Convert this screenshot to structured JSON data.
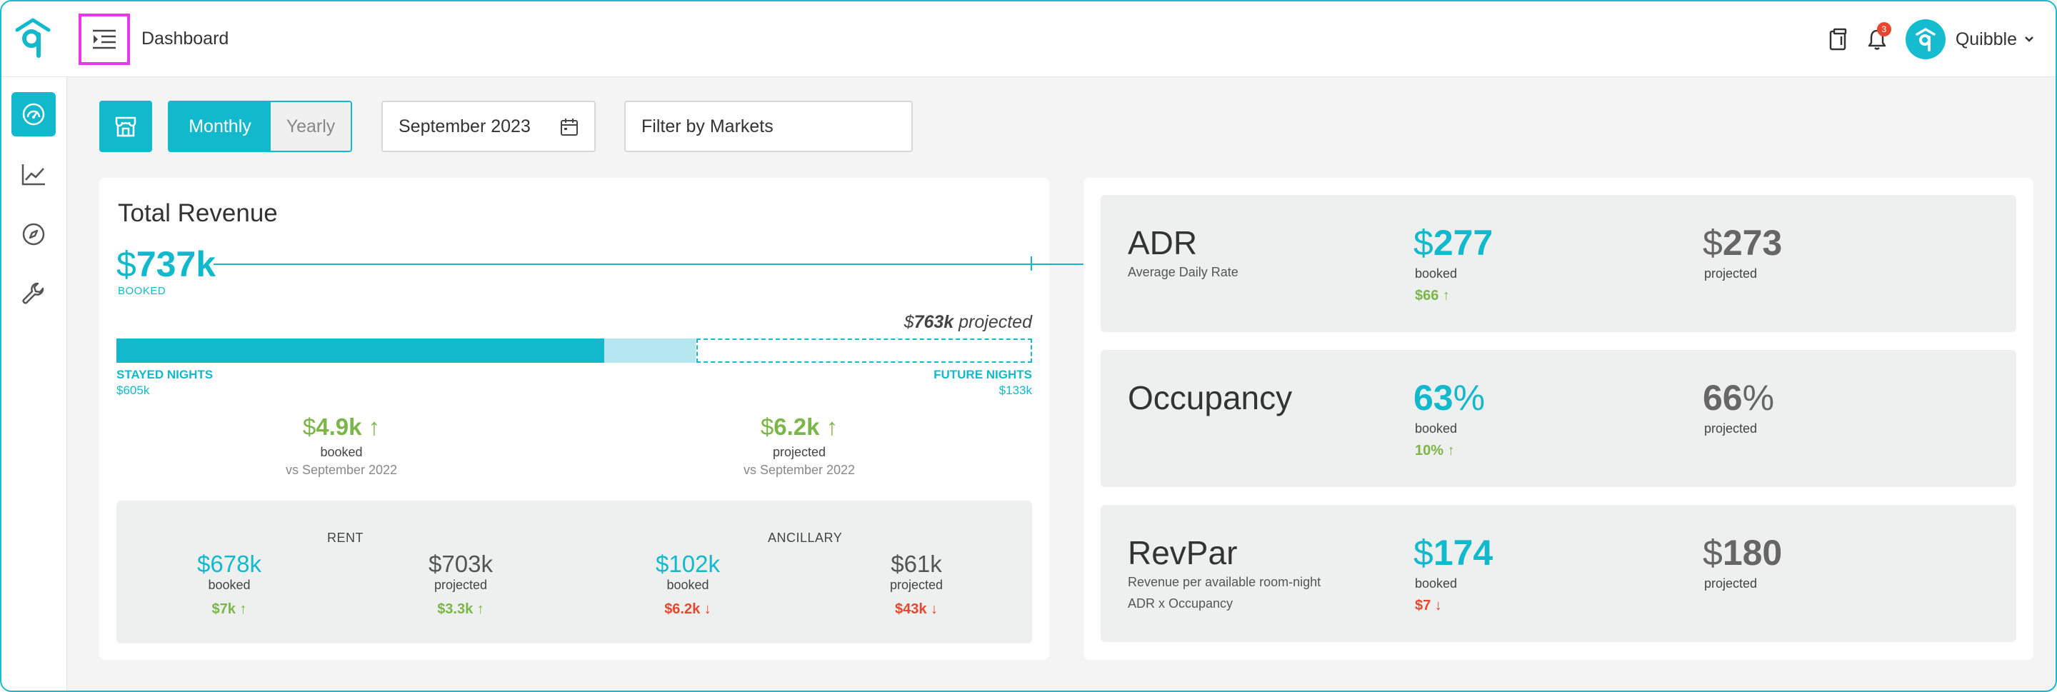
{
  "header": {
    "page_title": "Dashboard",
    "notification_count": "3",
    "user_name": "Quibble"
  },
  "colors": {
    "accent": "#12b9cd",
    "positive": "#7ab648",
    "negative": "#e8472f",
    "highlight": "#e838e8"
  },
  "sidebar": {
    "items": [
      {
        "icon": "dashboard-gauge-icon",
        "active": true
      },
      {
        "icon": "line-chart-icon",
        "active": false
      },
      {
        "icon": "compass-icon",
        "active": false
      },
      {
        "icon": "wrench-icon",
        "active": false
      }
    ]
  },
  "filters": {
    "period_options": [
      "Monthly",
      "Yearly"
    ],
    "period_selected": "Monthly",
    "monthly_label": "Monthly",
    "yearly_label": "Yearly",
    "date_value": "September 2023",
    "market_placeholder": "Filter by Markets"
  },
  "revenue": {
    "title": "Total Revenue",
    "booked_currency": "$",
    "booked_amount": "737k",
    "booked_label": "BOOKED",
    "projected_currency": "$",
    "projected_amount": "763k",
    "projected_suffix": " projected",
    "bar": {
      "stayed_k": 605,
      "booked_k": 737,
      "projected_k": 763
    },
    "stayed_label": "STAYED NIGHTS",
    "stayed_value": "$605k",
    "future_label": "FUTURE NIGHTS",
    "future_value": "$133k",
    "booked_compare": {
      "currency": "$",
      "amount": "4.9k",
      "arrow": "↑",
      "label": "booked",
      "sub": "vs September 2022"
    },
    "projected_compare": {
      "currency": "$",
      "amount": "6.2k",
      "arrow": "↑",
      "label": "projected",
      "sub": "vs September 2022"
    },
    "breakdown": {
      "rent_heading": "RENT",
      "ancillary_heading": "ANCILLARY",
      "rent_booked": {
        "value": "$678k",
        "label": "booked",
        "change": "$7k ↑"
      },
      "rent_projected": {
        "value": "$703k",
        "label": "projected",
        "change": "$3.3k ↑"
      },
      "anc_booked": {
        "value": "$102k",
        "label": "booked",
        "change": "$6.2k ↓"
      },
      "anc_projected": {
        "value": "$61k",
        "label": "projected",
        "change": "$43k ↓"
      }
    }
  },
  "metrics": {
    "adr": {
      "title": "ADR",
      "desc1": "Average Daily Rate",
      "booked_prefix": "$",
      "booked_num": "277",
      "booked_label": "booked",
      "change": "$66 ↑",
      "proj_prefix": "$",
      "proj_num": "273",
      "proj_label": "projected"
    },
    "occupancy": {
      "title": "Occupancy",
      "booked_num": "63",
      "booked_suffix": "%",
      "booked_label": "booked",
      "change": "10% ↑",
      "proj_num": "66",
      "proj_suffix": "%",
      "proj_label": "projected"
    },
    "revpar": {
      "title": "RevPar",
      "desc1": "Revenue per available room-night",
      "desc2": "ADR x Occupancy",
      "booked_prefix": "$",
      "booked_num": "174",
      "booked_label": "booked",
      "change": "$7 ↓",
      "proj_prefix": "$",
      "proj_num": "180",
      "proj_label": "projected"
    }
  }
}
